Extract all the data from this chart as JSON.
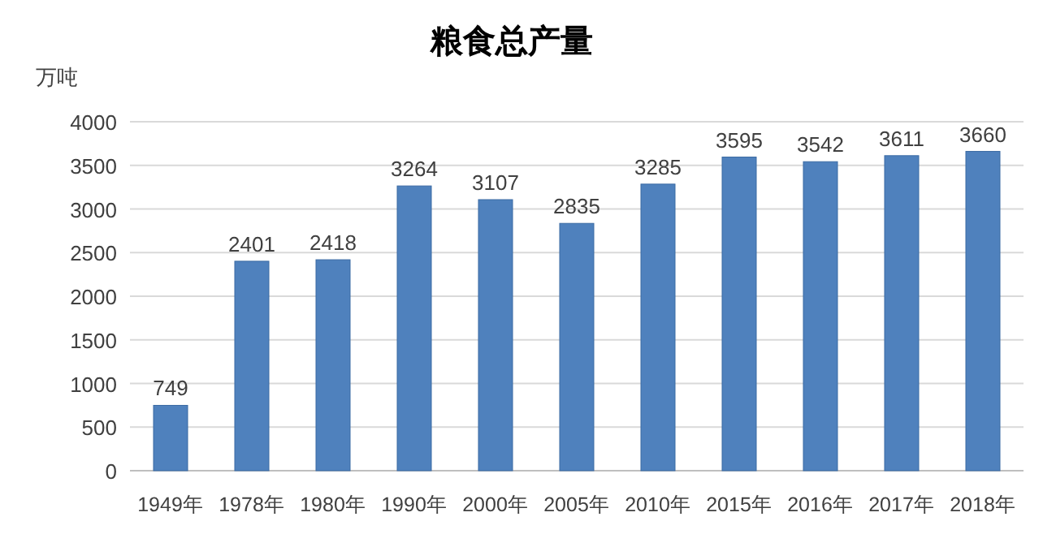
{
  "chart_data": {
    "type": "bar",
    "title": "粮食总产量",
    "ylabel": "万吨",
    "categories": [
      "1949年",
      "1978年",
      "1980年",
      "1990年",
      "2000年",
      "2005年",
      "2010年",
      "2015年",
      "2016年",
      "2017年",
      "2018年"
    ],
    "values": [
      749,
      2401,
      2418,
      3264,
      3107,
      2835,
      3285,
      3595,
      3542,
      3611,
      3660
    ],
    "color": "#4f81bd",
    "ylim": [
      0,
      4000
    ],
    "yticks": [
      0,
      500,
      1000,
      1500,
      2000,
      2500,
      3000,
      3500,
      4000
    ],
    "grid": "y",
    "data_labels": true
  }
}
